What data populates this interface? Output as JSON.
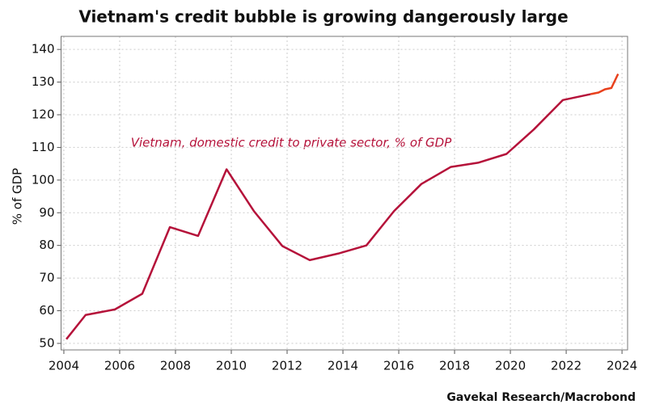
{
  "chart_data": {
    "type": "line",
    "title": "Vietnam's credit bubble is growing dangerously large",
    "y_label": "% of GDP",
    "annotation": "Vietnam, domestic credit to private sector, % of GDP",
    "source": "Gavekal Research/Macrobond",
    "series": [
      {
        "color": "#b5123a",
        "x": [
          2004.09,
          2004.78,
          2005.83,
          2006.81,
          2007.8,
          2008.81,
          2009.83,
          2010.81,
          2011.83,
          2012.81,
          2013.83,
          2014.84,
          2015.83,
          2016.81,
          2017.86,
          2018.84,
          2019.86,
          2020.84,
          2021.88,
          2022.87
        ],
        "values": [
          51.3,
          58.7,
          60.4,
          65.2,
          85.6,
          82.9,
          103.3,
          90.5,
          79.8,
          75.5,
          77.5,
          80,
          90.5,
          98.8,
          104,
          105.3,
          108,
          115.5,
          124.5,
          126.3
        ]
      },
      {
        "color": "#e8401c",
        "x": [
          2022.87,
          2023.16,
          2023.39,
          2023.62,
          2023.86
        ],
        "values": [
          126.3,
          126.8,
          127.8,
          128.2,
          132.5
        ]
      }
    ],
    "xlim": [
      2003.9,
      2024.2
    ],
    "xticks": [
      2004,
      2006,
      2008,
      2010,
      2012,
      2014,
      2016,
      2018,
      2020,
      2022,
      2024
    ],
    "ylim": [
      48,
      144
    ],
    "yticks": [
      50,
      60,
      70,
      80,
      90,
      100,
      110,
      120,
      130,
      140
    ],
    "grid": true
  }
}
